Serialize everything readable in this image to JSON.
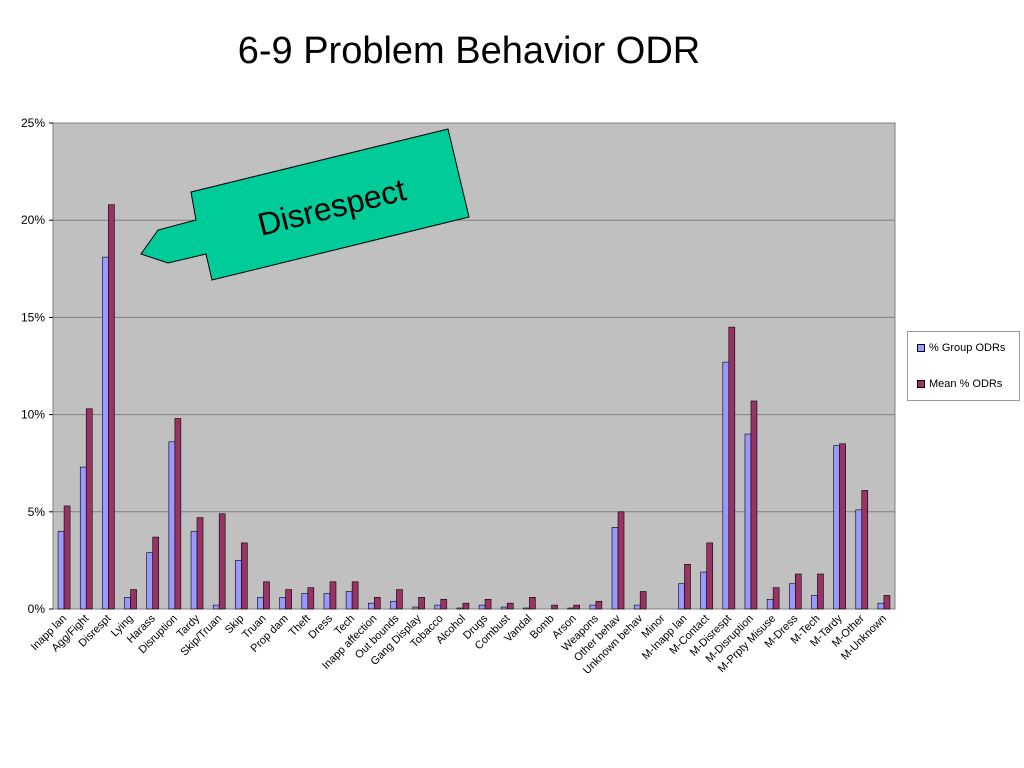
{
  "slide": {
    "title": "6-9 Problem Behavior ODR"
  },
  "callout": {
    "label": "Disrespect",
    "fill": "#00cc99",
    "points_to": "Disrespt"
  },
  "chart_data": {
    "type": "bar",
    "title": "",
    "xlabel": "",
    "ylabel": "",
    "ylim": [
      0,
      25
    ],
    "yticks": [
      "0%",
      "5%",
      "10%",
      "15%",
      "20%",
      "25%"
    ],
    "grid": true,
    "plot_background": "#c0c0c0",
    "legend": "right",
    "categories": [
      "Inapp lan",
      "Agg/Fight",
      "Disrespt",
      "Lying",
      "Harass",
      "Disruption",
      "Tardy",
      "Skip/Truan",
      "Skip",
      "Truan",
      "Prop dam",
      "Theft",
      "Dress",
      "Tech",
      "Inapp affection",
      "Out bounds",
      "Gang Display",
      "Tobacco",
      "Alcohol",
      "Drugs",
      "Combust",
      "Vandal",
      "Bomb",
      "Arson",
      "Weapons",
      "Other behav",
      "Unknown behav",
      "Minor",
      "M-Inapp lan",
      "M-Contact",
      "M-Disrespt",
      "M-Disruption",
      "M-Prpty Misuse",
      "M-Dress",
      "M-Tech",
      "M-Tardy",
      "M-Other",
      "M-Unknown"
    ],
    "series": [
      {
        "name": "% Group ODRs",
        "color": "#9999ff",
        "values": [
          4.0,
          7.3,
          18.1,
          0.6,
          2.9,
          8.6,
          4.0,
          0.2,
          2.5,
          0.6,
          0.6,
          0.8,
          0.8,
          0.9,
          0.3,
          0.4,
          0.1,
          0.2,
          0.05,
          0.2,
          0.1,
          0.05,
          0.0,
          0.05,
          0.2,
          4.2,
          0.2,
          0.0,
          1.3,
          1.9,
          12.7,
          9.0,
          0.5,
          1.3,
          0.7,
          8.4,
          5.1,
          0.3
        ]
      },
      {
        "name": "Mean % ODRs",
        "color": "#993366",
        "values": [
          5.3,
          10.3,
          20.8,
          1.0,
          3.7,
          9.8,
          4.7,
          4.9,
          3.4,
          1.4,
          1.0,
          1.1,
          1.4,
          1.4,
          0.6,
          1.0,
          0.6,
          0.5,
          0.3,
          0.5,
          0.3,
          0.6,
          0.2,
          0.2,
          0.4,
          5.0,
          0.9,
          0.0,
          2.3,
          3.4,
          14.5,
          10.7,
          1.1,
          1.8,
          1.8,
          8.5,
          6.1,
          0.7
        ]
      }
    ]
  }
}
